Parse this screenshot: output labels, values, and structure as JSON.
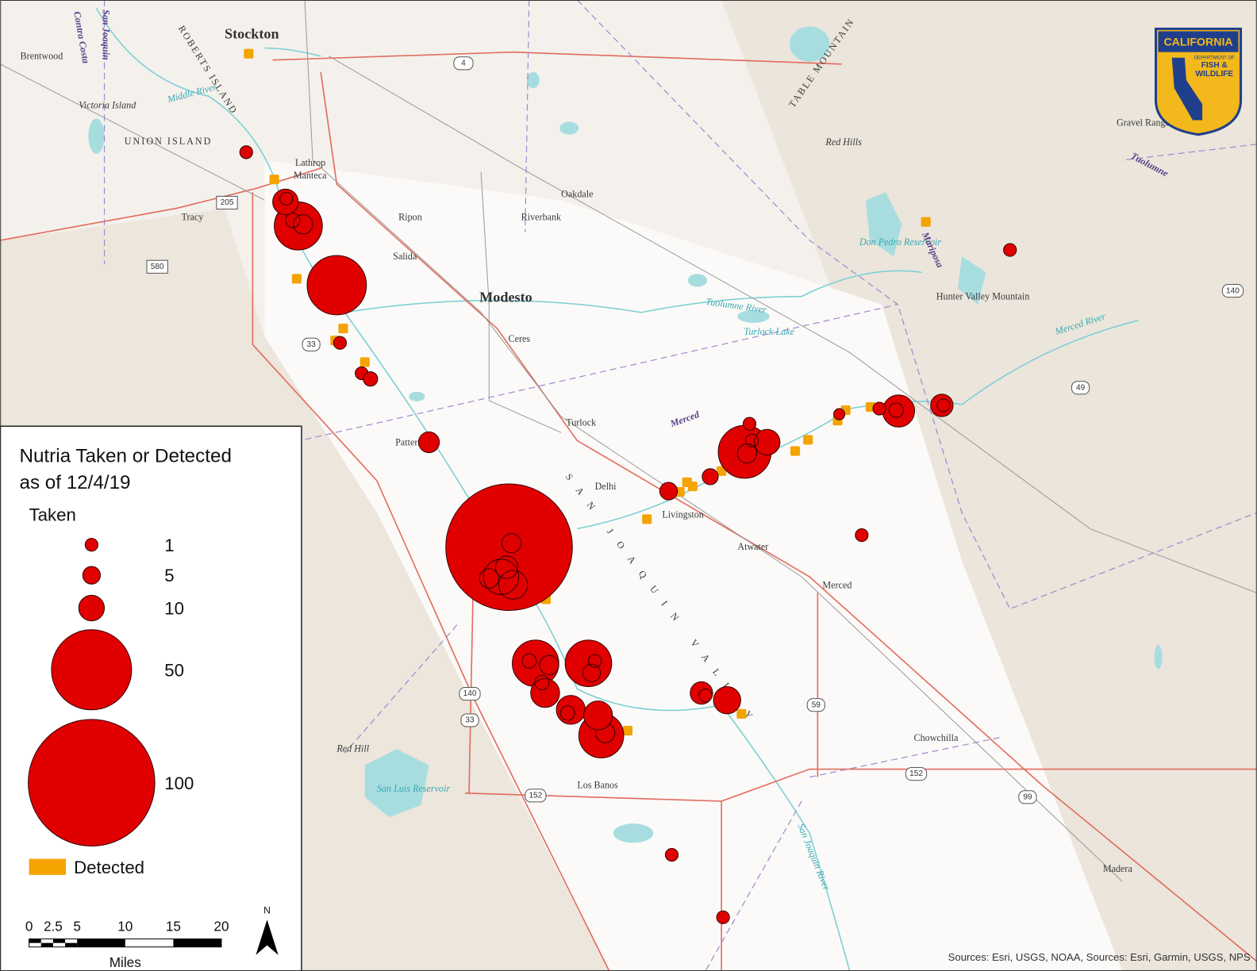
{
  "legend": {
    "title_line1": "Nutria Taken or Detected",
    "title_line2": "as of 12/4/19",
    "taken_heading": "Taken",
    "taken_sizes": [
      "1",
      "5",
      "10",
      "50",
      "100"
    ],
    "detected": "Detected"
  },
  "scale_bar": {
    "ticks": [
      "0",
      "2.5",
      "5",
      "10",
      "15",
      "20"
    ],
    "unit": "Miles",
    "north": "N"
  },
  "sources": "Sources: Esri, USGS, NOAA, Sources: Esri, Garmin, USGS, NPS",
  "logo": {
    "line1": "CALIFORNIA",
    "line2": "DEPARTMENT OF",
    "line3": "FISH &",
    "line4": "WILDLIFE"
  },
  "places": [
    "Stockton",
    "Brentwood",
    "Victoria Island",
    "UNION ISLAND",
    "Lathrop",
    "Manteca",
    "Tracy",
    "Ripon",
    "Salida",
    "Oakdale",
    "Riverbank",
    "Modesto",
    "Ceres",
    "Turlock",
    "Patterson",
    "Delhi",
    "Livingston",
    "Atwater",
    "Merced",
    "Chowchilla",
    "Madera",
    "Los Banos",
    "Red Hill",
    "Red Hills",
    "Hunter Valley Mountain",
    "Gravel Range",
    "Middle River",
    "Tuolumne River",
    "Turlock Lake",
    "Don Pedro Reservoir",
    "San Luis Reservoir",
    "Merced",
    "Mariposa",
    "Tuolumne",
    "TABLE MOUNTAIN",
    "ROBERTS ISLAND",
    "S A N   J O A Q U I N   V A L L E Y",
    "San Joaquin River",
    "Merced River",
    "San Joaquin",
    "Contra Costa"
  ],
  "highways": [
    "4",
    "205",
    "580",
    "33",
    "140",
    "33",
    "152",
    "152",
    "99",
    "59",
    "49",
    "140"
  ]
}
